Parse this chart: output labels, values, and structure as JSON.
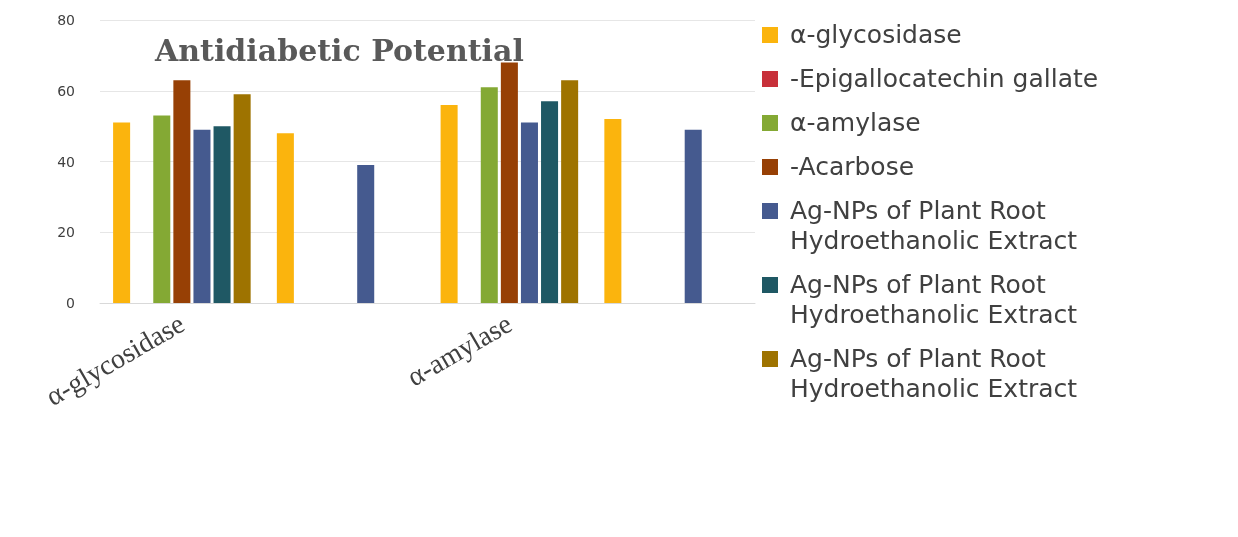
{
  "chart_data": {
    "type": "bar",
    "title": "Antidiabetic Potential",
    "categories": [
      "α-glycosidase",
      null,
      "α-amylase",
      null
    ],
    "series": [
      {
        "name": "α-glycosidase",
        "color": "#fbb40d",
        "values": [
          51,
          48,
          56,
          52
        ]
      },
      {
        "name": "-Epigallocatechin gallate",
        "color": "#c8303a",
        "values": [
          null,
          null,
          null,
          null
        ]
      },
      {
        "name": "α-amylase",
        "color": "#84a934",
        "values": [
          53,
          null,
          61,
          null
        ]
      },
      {
        "name": "-Acarbose",
        "color": "#974005",
        "values": [
          63,
          null,
          68,
          null
        ]
      },
      {
        "name": "Ag-NPs of Plant Root Hydroethanolic Extract",
        "color": "#455a8f",
        "values": [
          49,
          39,
          51,
          49
        ]
      },
      {
        "name": "Ag-NPs of Plant Root Hydroethanolic Extract",
        "color": "#1f5864",
        "values": [
          50,
          null,
          57,
          null
        ]
      },
      {
        "name": "Ag-NPs of Plant Root Hydroethanolic Extract",
        "color": "#9e7300",
        "values": [
          59,
          null,
          63,
          null
        ]
      }
    ],
    "ylim": [
      0,
      80
    ],
    "yticks": [
      0,
      20,
      40,
      60,
      80
    ],
    "grid": "y",
    "legend": "right"
  }
}
